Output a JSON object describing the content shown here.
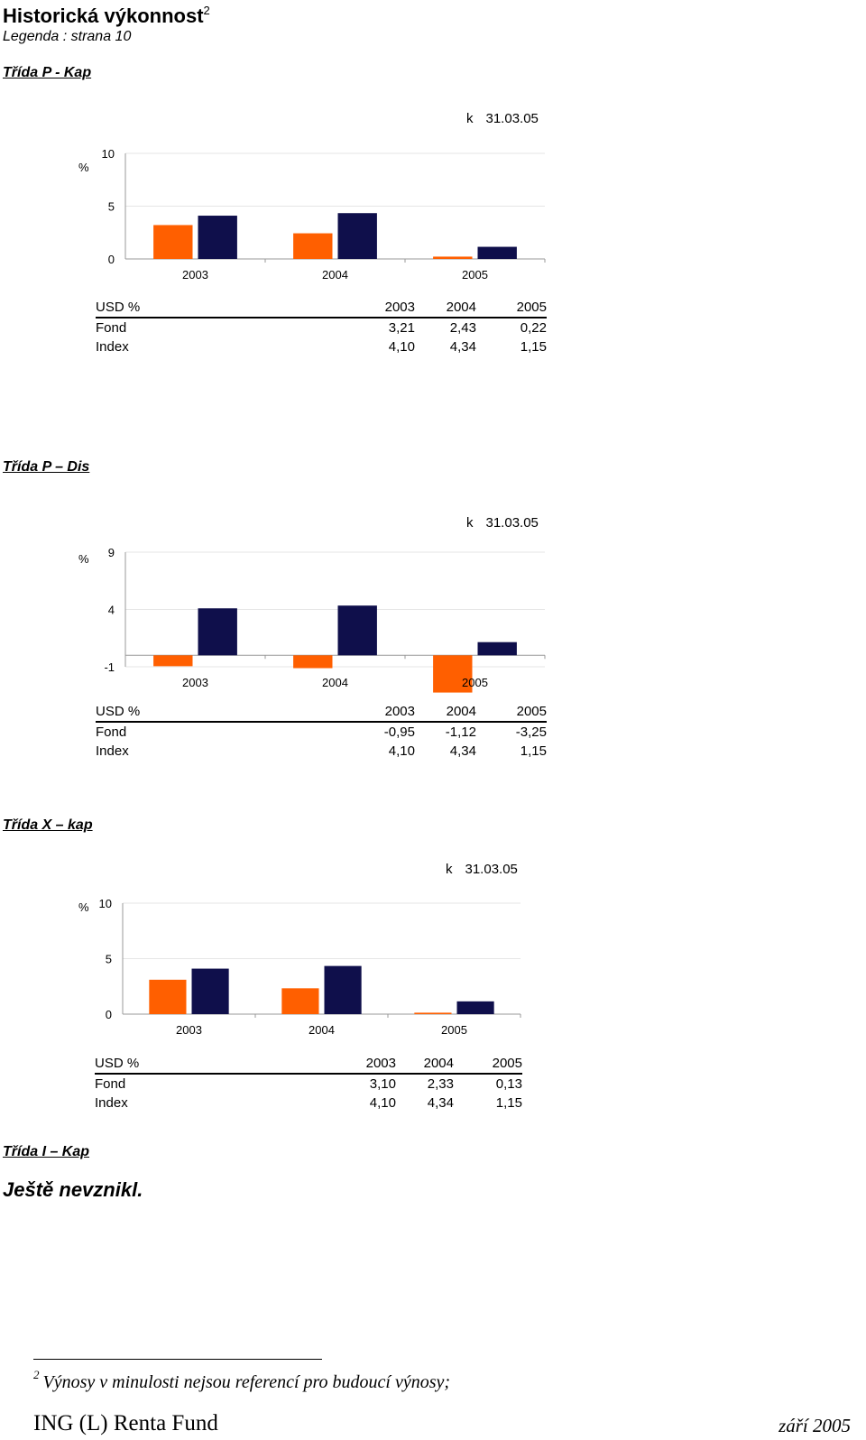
{
  "title": "Historická výkonnost",
  "title_sup": "2",
  "legend": "Legenda : strana 10",
  "colors": {
    "fond": "#FF5F00",
    "index": "#0F0F4B",
    "grid": "#E6E6E6",
    "axis": "#999999"
  },
  "sections": [
    {
      "class_title": "Třída  P - Kap",
      "asof_prefix": "k",
      "asof_date": "31.03.05",
      "table_header": [
        "USD %",
        "2003",
        "2004",
        "2005"
      ],
      "rows": [
        {
          "label": "Fond",
          "values": [
            "3,21",
            "2,43",
            "0,22"
          ]
        },
        {
          "label": "Index",
          "values": [
            "4,10",
            "4,34",
            "1,15"
          ]
        }
      ]
    },
    {
      "class_title": "Třída P – Dis",
      "asof_prefix": "k",
      "asof_date": "31.03.05",
      "table_header": [
        "USD %",
        "2003",
        "2004",
        "2005"
      ],
      "rows": [
        {
          "label": "Fond",
          "values": [
            "-0,95",
            "-1,12",
            "-3,25"
          ]
        },
        {
          "label": "Index",
          "values": [
            "4,10",
            "4,34",
            "1,15"
          ]
        }
      ]
    },
    {
      "class_title": "Třída  X – kap",
      "asof_prefix": "k",
      "asof_date": "31.03.05",
      "table_header": [
        "USD %",
        "2003",
        "2004",
        "2005"
      ],
      "rows": [
        {
          "label": "Fond",
          "values": [
            "3,10",
            "2,33",
            "0,13"
          ]
        },
        {
          "label": "Index",
          "values": [
            "4,10",
            "4,34",
            "1,15"
          ]
        }
      ]
    },
    {
      "class_title": "Třída  I – Kap"
    }
  ],
  "not_yet": "Ještě nevznikl.",
  "footnote_mark": "2",
  "footnote": "Výnosy v minulosti nejsou referencí pro budoucí výnosy;",
  "footer_left": "ING (L) Renta Fund",
  "footer_right": "září 2005",
  "chart_data": [
    {
      "type": "bar",
      "ylabel": "%",
      "categories": [
        "2003",
        "2004",
        "2005"
      ],
      "series": [
        {
          "values": [
            3.21,
            2.43,
            0.22
          ]
        },
        {
          "values": [
            4.1,
            4.34,
            1.15
          ]
        }
      ],
      "ylim": [
        0,
        10
      ],
      "yticks": [
        "10",
        "5",
        "0"
      ],
      "ytick_values": [
        10,
        5,
        0
      ]
    },
    {
      "type": "bar",
      "ylabel": "%",
      "categories": [
        "2003",
        "2004",
        "2005"
      ],
      "series": [
        {
          "values": [
            -0.95,
            -1.12,
            -3.25
          ]
        },
        {
          "values": [
            4.1,
            4.34,
            1.15
          ]
        }
      ],
      "ylim": [
        -1,
        9
      ],
      "yticks": [
        "9",
        "4",
        "-1"
      ],
      "ytick_values": [
        9,
        4,
        -1
      ]
    },
    {
      "type": "bar",
      "ylabel": "%",
      "categories": [
        "2003",
        "2004",
        "2005"
      ],
      "series": [
        {
          "values": [
            3.1,
            2.33,
            0.13
          ]
        },
        {
          "values": [
            4.1,
            4.34,
            1.15
          ]
        }
      ],
      "ylim": [
        0,
        10
      ],
      "yticks": [
        "10",
        "5",
        "0"
      ],
      "ytick_values": [
        10,
        5,
        0
      ]
    }
  ]
}
